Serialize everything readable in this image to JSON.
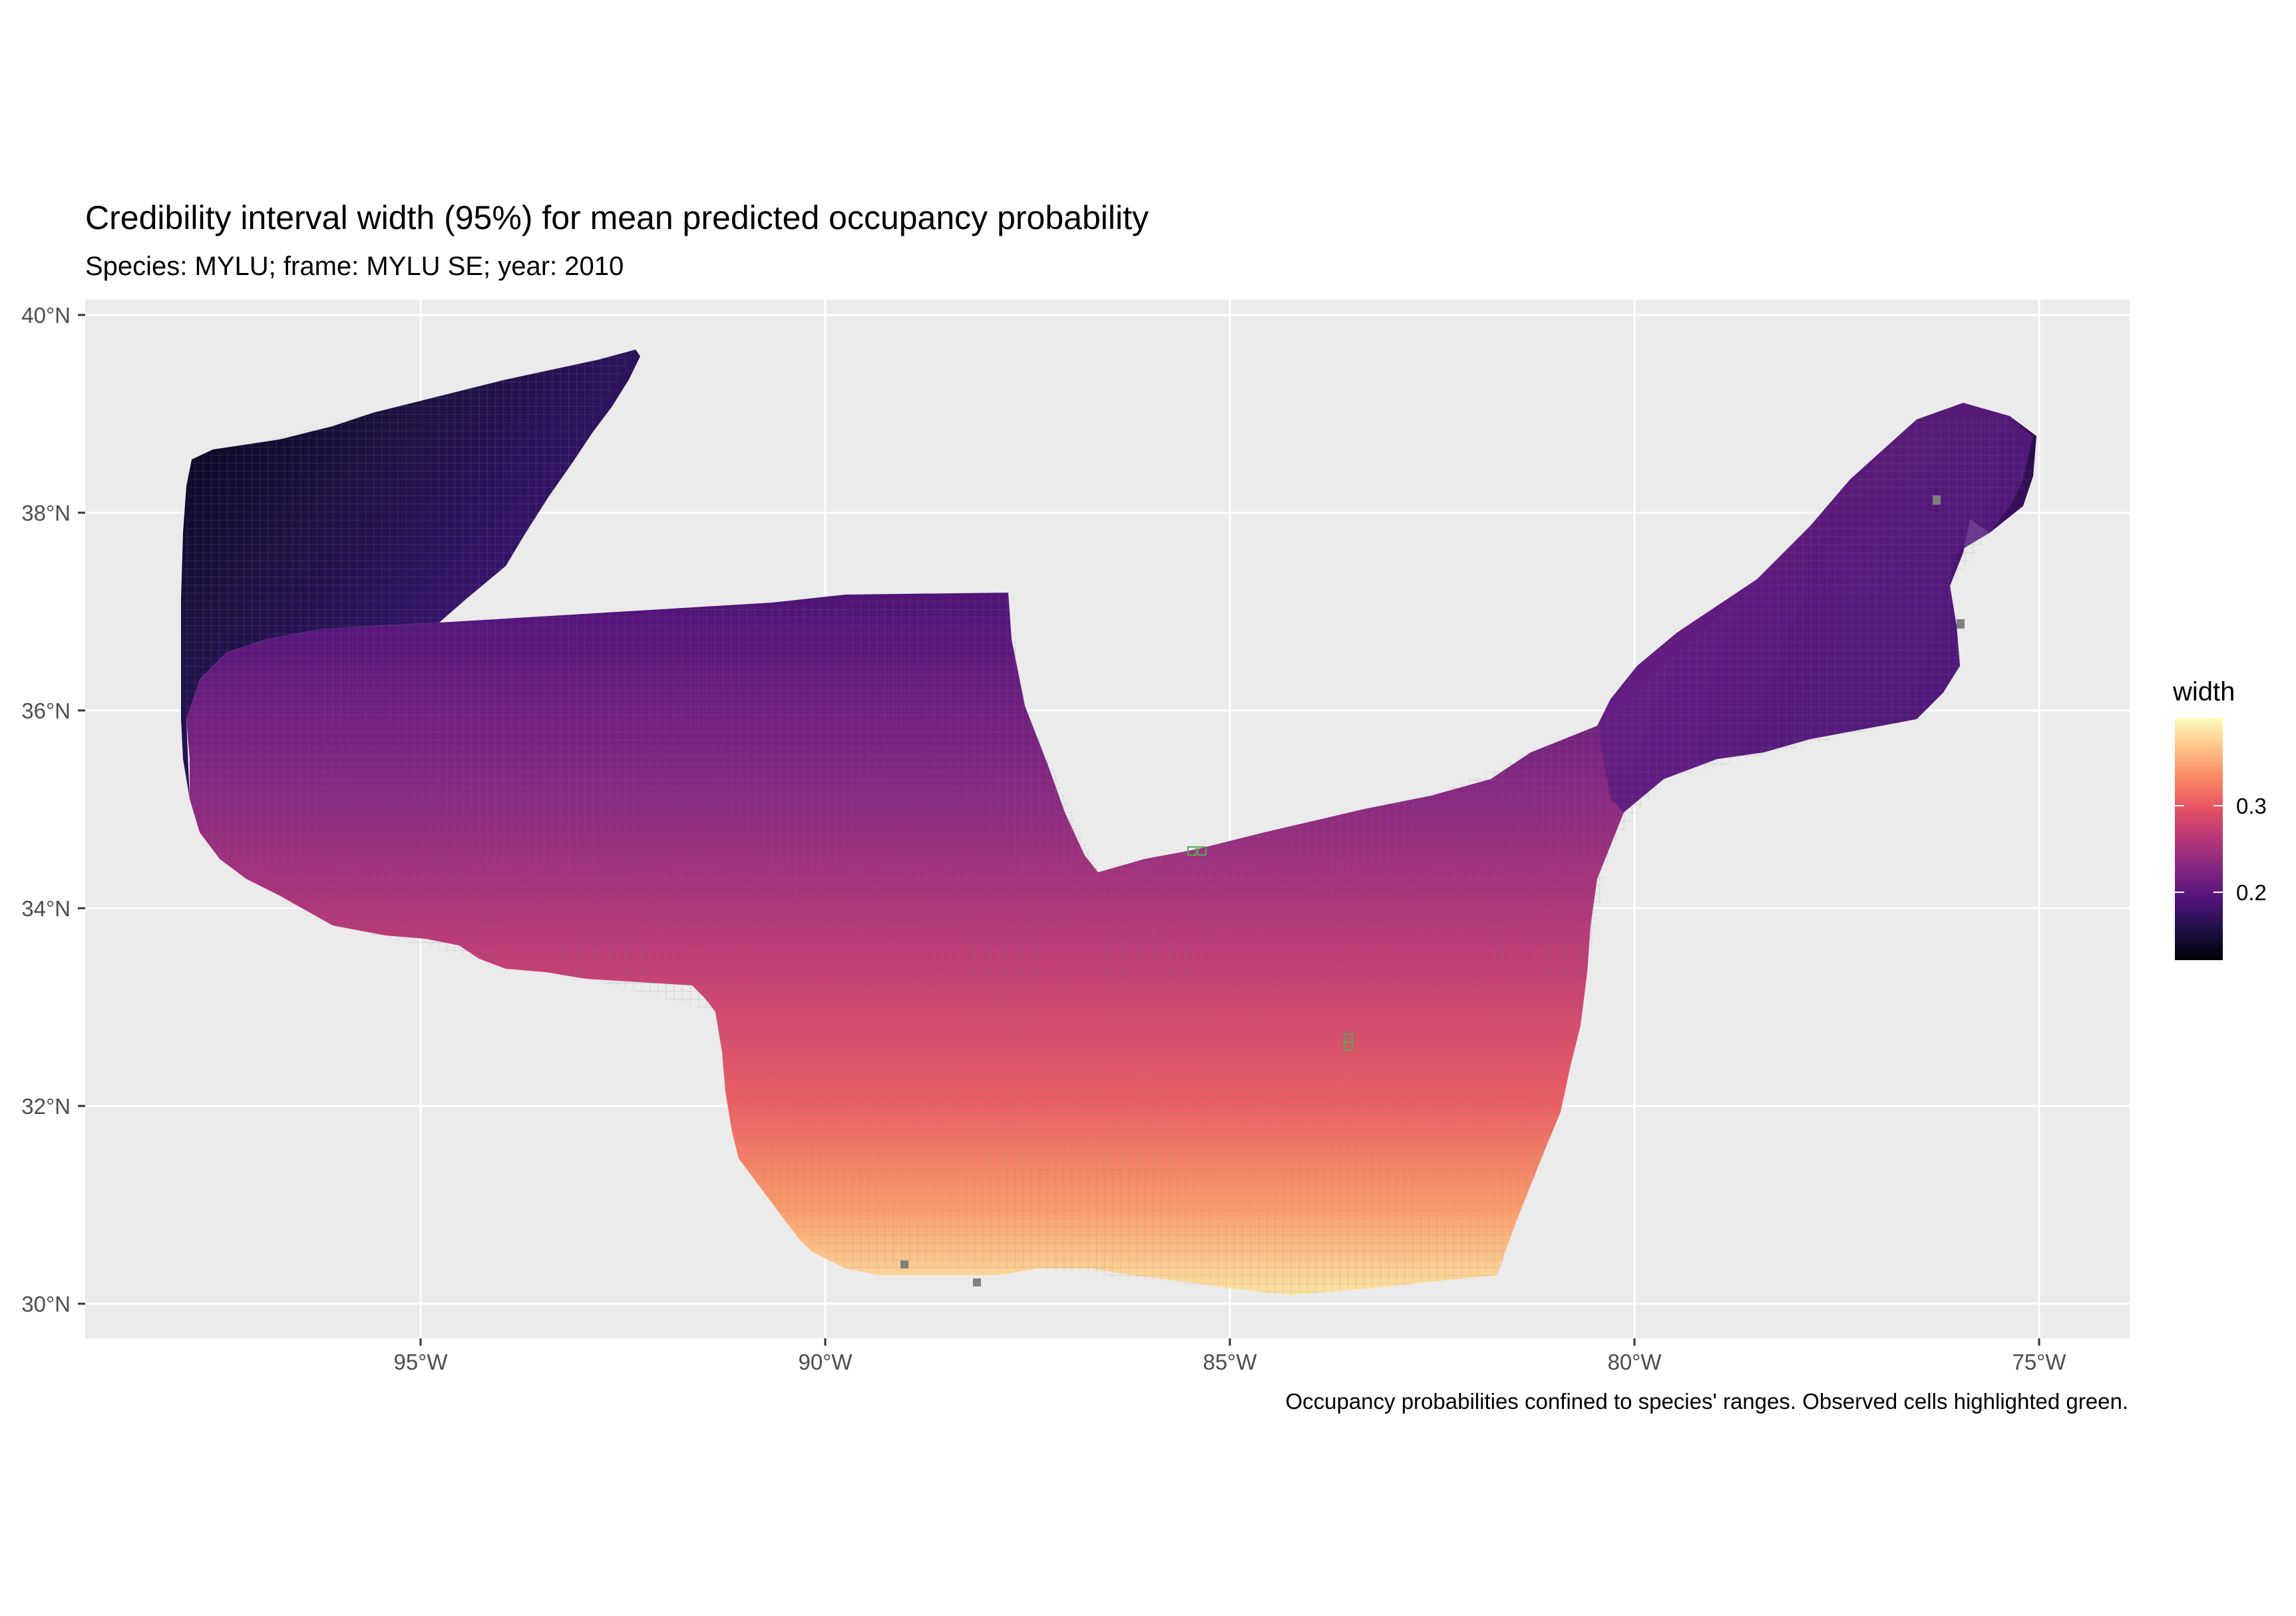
{
  "title": "Credibility interval width (95%) for mean predicted occupancy probability",
  "subtitle": "Species: MYLU; frame: MYLU SE; year: 2010",
  "caption": "Occupancy probabilities confined to species' ranges. Observed cells highlighted green.",
  "axes": {
    "x_ticks": [
      "95°W",
      "90°W",
      "85°W",
      "80°W",
      "75°W"
    ],
    "y_ticks": [
      "40°N",
      "38°N",
      "36°N",
      "34°N",
      "32°N",
      "30°N"
    ]
  },
  "legend": {
    "title": "width",
    "labels": [
      "0.3",
      "0.2"
    ],
    "palette": [
      "#000004",
      "#1d1147",
      "#51127c",
      "#822681",
      "#b63679",
      "#e65164",
      "#fb8861",
      "#fec287",
      "#fcfdbf"
    ]
  },
  "colors": {
    "panel_background": "#ebebeb",
    "grid": "#ffffff",
    "cell_border": "#7f7f7f"
  }
}
